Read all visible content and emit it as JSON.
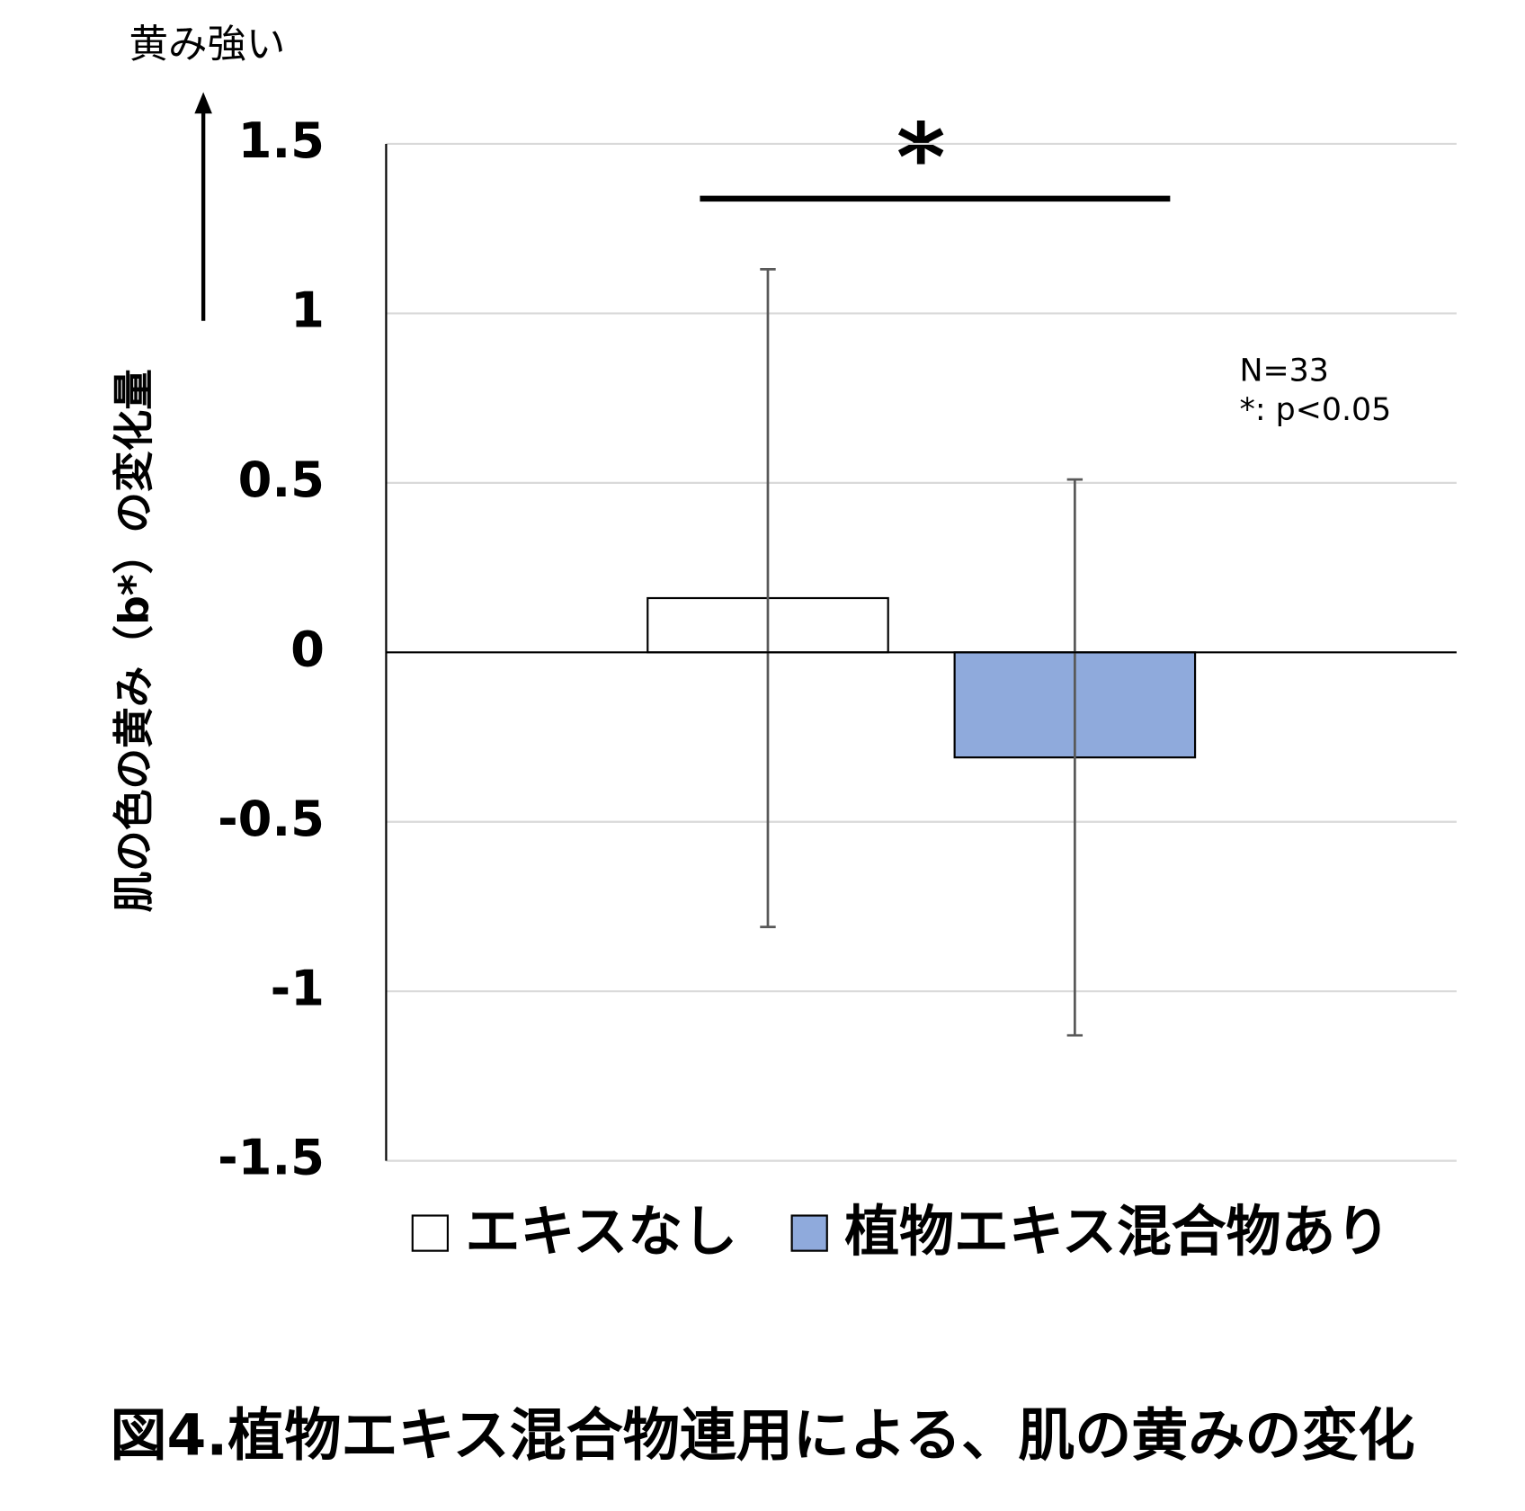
{
  "chart_data": {
    "type": "bar",
    "title": "図4.植物エキス混合物連用による、肌の黄みの変化",
    "y_label": "肌の色の黄み（b*）の変化量",
    "y_direction_label": "黄み強い",
    "significance": "*",
    "notes": [
      "N=33",
      "*: p<0.05"
    ],
    "categories": [
      null
    ],
    "series": [
      {
        "name": "エキスなし",
        "color": "#ffffff",
        "values": [
          0.16
        ],
        "errors": [
          0.97
        ]
      },
      {
        "name": "植物エキス混合物あり",
        "color": "#8faadc",
        "values": [
          -0.31
        ],
        "errors": [
          0.82
        ]
      }
    ],
    "ylim": [
      -1.5,
      1.5
    ],
    "yticks": [
      -1.5,
      -1,
      -0.5,
      0,
      0.5,
      1,
      1.5
    ],
    "grid": true,
    "legend": "bottom"
  }
}
